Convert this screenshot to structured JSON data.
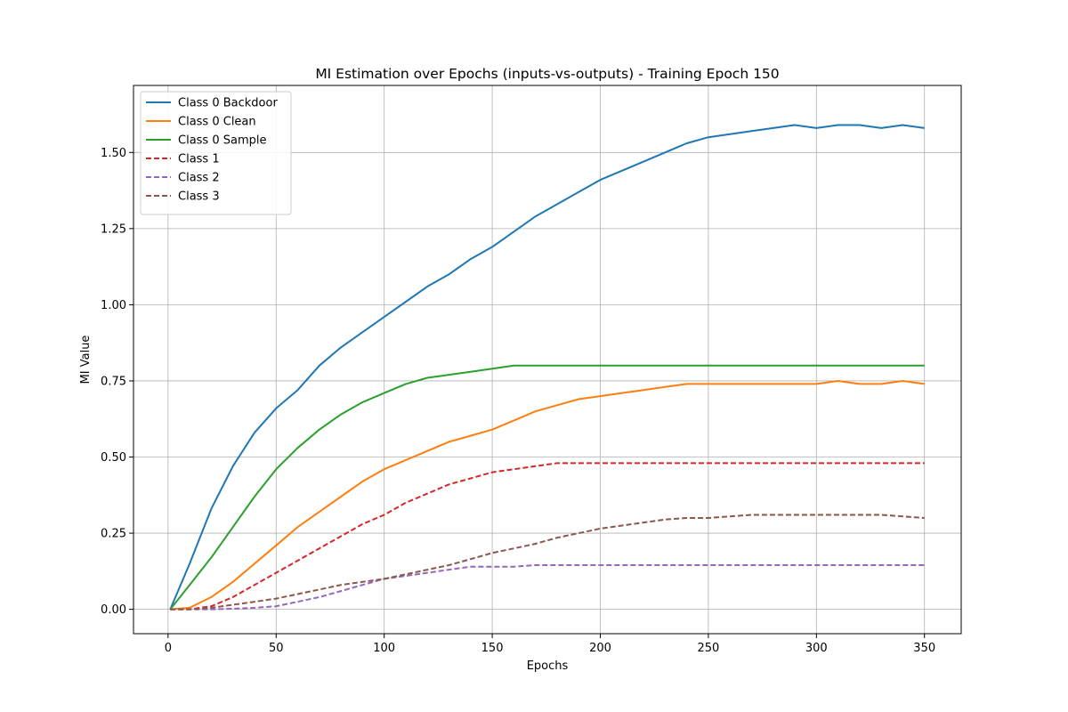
{
  "chart_data": {
    "type": "line",
    "title": "MI Estimation over Epochs (inputs-vs-outputs) - Training Epoch 150",
    "xlabel": "Epochs",
    "ylabel": "MI Value",
    "xlim": [
      -16,
      367
    ],
    "ylim": [
      -0.08,
      1.72
    ],
    "xticks": [
      0,
      50,
      100,
      150,
      200,
      250,
      300,
      350
    ],
    "yticks": [
      0.0,
      0.25,
      0.5,
      0.75,
      1.0,
      1.25,
      1.5
    ],
    "xtick_labels": [
      "0",
      "50",
      "100",
      "150",
      "200",
      "250",
      "300",
      "350"
    ],
    "ytick_labels": [
      "0.00",
      "0.25",
      "0.50",
      "0.75",
      "1.00",
      "1.25",
      "1.50"
    ],
    "grid": true,
    "legend_position": "top-left",
    "x": [
      1,
      10,
      20,
      30,
      40,
      50,
      60,
      70,
      80,
      90,
      100,
      110,
      120,
      130,
      140,
      150,
      160,
      170,
      180,
      190,
      200,
      210,
      220,
      230,
      240,
      250,
      260,
      270,
      280,
      290,
      300,
      310,
      320,
      330,
      340,
      350
    ],
    "series": [
      {
        "name": "Class 0 Backdoor",
        "color": "#1f77b4",
        "style": "solid",
        "values": [
          0.0,
          0.15,
          0.33,
          0.47,
          0.58,
          0.66,
          0.72,
          0.8,
          0.86,
          0.91,
          0.96,
          1.01,
          1.06,
          1.1,
          1.15,
          1.19,
          1.24,
          1.29,
          1.33,
          1.37,
          1.41,
          1.44,
          1.47,
          1.5,
          1.53,
          1.55,
          1.56,
          1.57,
          1.58,
          1.59,
          1.58,
          1.59,
          1.59,
          1.58,
          1.59,
          1.58
        ]
      },
      {
        "name": "Class 0 Clean",
        "color": "#ff7f0e",
        "style": "solid",
        "values": [
          0.0,
          0.005,
          0.04,
          0.09,
          0.15,
          0.21,
          0.27,
          0.32,
          0.37,
          0.42,
          0.46,
          0.49,
          0.52,
          0.55,
          0.57,
          0.59,
          0.62,
          0.65,
          0.67,
          0.69,
          0.7,
          0.71,
          0.72,
          0.73,
          0.74,
          0.74,
          0.74,
          0.74,
          0.74,
          0.74,
          0.74,
          0.75,
          0.74,
          0.74,
          0.75,
          0.74
        ]
      },
      {
        "name": "Class 0 Sample",
        "color": "#2ca02c",
        "style": "solid",
        "values": [
          0.0,
          0.08,
          0.17,
          0.27,
          0.37,
          0.46,
          0.53,
          0.59,
          0.64,
          0.68,
          0.71,
          0.74,
          0.76,
          0.77,
          0.78,
          0.79,
          0.8,
          0.8,
          0.8,
          0.8,
          0.8,
          0.8,
          0.8,
          0.8,
          0.8,
          0.8,
          0.8,
          0.8,
          0.8,
          0.8,
          0.8,
          0.8,
          0.8,
          0.8,
          0.8,
          0.8
        ]
      },
      {
        "name": "Class 1",
        "color": "#d62728",
        "style": "dashed",
        "values": [
          0.0,
          0.0,
          0.01,
          0.04,
          0.08,
          0.12,
          0.16,
          0.2,
          0.24,
          0.28,
          0.31,
          0.35,
          0.38,
          0.41,
          0.43,
          0.45,
          0.46,
          0.47,
          0.48,
          0.48,
          0.48,
          0.48,
          0.48,
          0.48,
          0.48,
          0.48,
          0.48,
          0.48,
          0.48,
          0.48,
          0.48,
          0.48,
          0.48,
          0.48,
          0.48,
          0.48
        ]
      },
      {
        "name": "Class 2",
        "color": "#9467bd",
        "style": "dashed",
        "values": [
          0.0,
          0.0,
          0.0,
          0.002,
          0.005,
          0.01,
          0.025,
          0.04,
          0.06,
          0.08,
          0.1,
          0.11,
          0.12,
          0.13,
          0.14,
          0.14,
          0.14,
          0.145,
          0.145,
          0.145,
          0.145,
          0.145,
          0.145,
          0.145,
          0.145,
          0.145,
          0.145,
          0.145,
          0.145,
          0.145,
          0.145,
          0.145,
          0.145,
          0.145,
          0.145,
          0.145
        ]
      },
      {
        "name": "Class 3",
        "color": "#8c564b",
        "style": "dashed",
        "values": [
          0.0,
          0.0,
          0.005,
          0.015,
          0.025,
          0.035,
          0.05,
          0.065,
          0.08,
          0.09,
          0.1,
          0.115,
          0.13,
          0.145,
          0.165,
          0.185,
          0.2,
          0.215,
          0.235,
          0.25,
          0.265,
          0.275,
          0.285,
          0.295,
          0.3,
          0.3,
          0.305,
          0.31,
          0.31,
          0.31,
          0.31,
          0.31,
          0.31,
          0.31,
          0.305,
          0.3
        ]
      }
    ]
  }
}
